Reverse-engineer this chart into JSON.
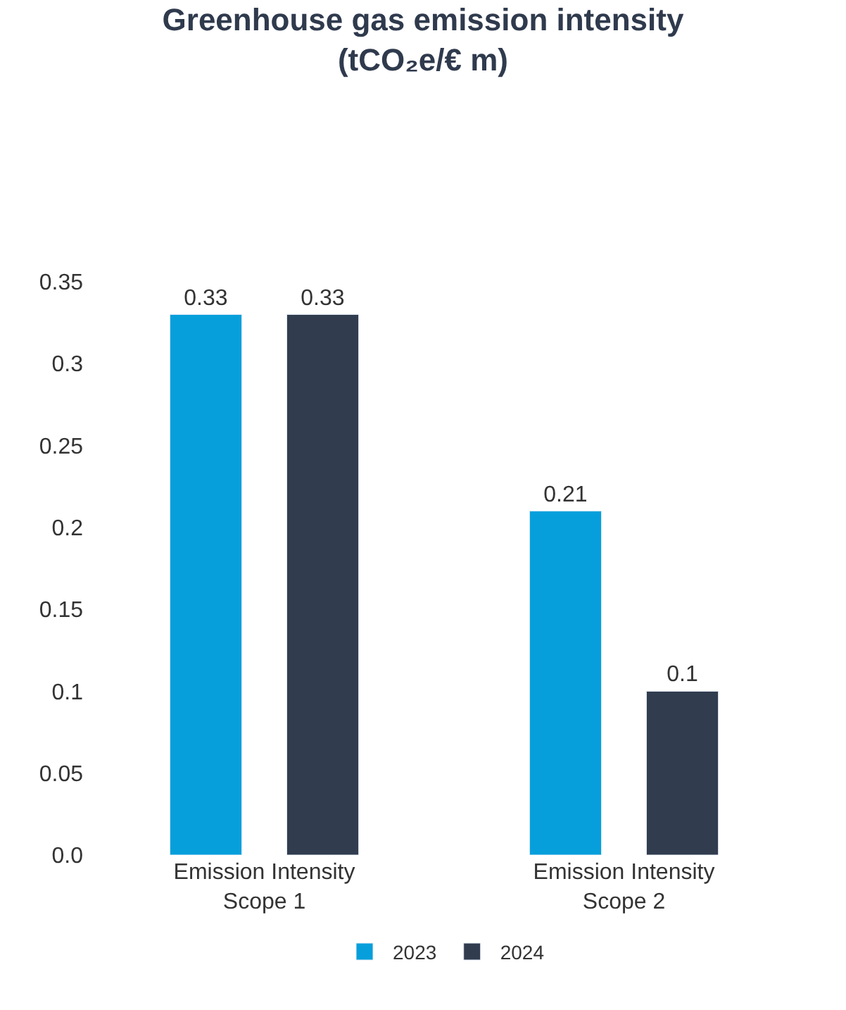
{
  "chart_data": {
    "type": "bar",
    "title": "Greenhouse gas emission intensity",
    "subtitle": "(tCO₂e/€ m)",
    "categories": [
      "Emission Intensity Scope 1",
      "Emission Intensity Scope 2"
    ],
    "series": [
      {
        "name": "2023",
        "color": "#069fdb",
        "values": [
          0.33,
          0.21
        ]
      },
      {
        "name": "2024",
        "color": "#313c4f",
        "values": [
          0.33,
          0.1
        ]
      }
    ],
    "ylim": [
      0,
      0.35
    ],
    "yticks": [
      {
        "value": 0,
        "label": "0.0"
      },
      0.05,
      0.1,
      0.15,
      0.2,
      0.25,
      0.3,
      0.35
    ],
    "data_labels": true,
    "legend": "bottom"
  }
}
